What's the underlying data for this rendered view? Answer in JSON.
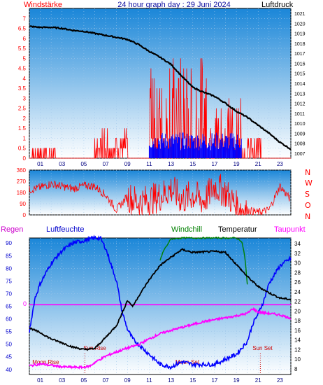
{
  "header": {
    "left_title": "Windstärke",
    "center_title": "24 hour graph day : 29 Juni 2024",
    "right_title": "Luftdruck"
  },
  "middle_panel": {
    "dir_labels": [
      "N",
      "W",
      "S",
      "O",
      "N"
    ]
  },
  "bottom_panel": {
    "legend": [
      "Regen",
      "Luftfeuchte",
      "Windchill",
      "Temperatur",
      "Taupunkt"
    ],
    "rain_zero_label": "0",
    "annotations": {
      "sun_rise": "Sun Rise",
      "sun_set": "Sun Set",
      "moon_rise": "Moon Rise",
      "moon_set": "Moon Set"
    }
  },
  "colors": {
    "wind": "#ff0000",
    "gust": "#0000ff",
    "pressure": "#000000",
    "humidity": "#0000ff",
    "windchill": "#008000",
    "temperature": "#000000",
    "dewpoint": "#ff00ff",
    "rain": "#ff00ff",
    "axis_left": "#ff0000",
    "axis_mid_left": "#ff0000",
    "hour_label": "#000080"
  },
  "chart_data": [
    {
      "type": "line",
      "id": "wind-pressure",
      "xlabel_ticks": [
        "01",
        "03",
        "05",
        "07",
        "09",
        "11",
        "13",
        "15",
        "17",
        "19",
        "21",
        "23"
      ],
      "x_range": [
        0,
        24
      ],
      "y_left_ticks": [
        0,
        0.5,
        1,
        1.5,
        2,
        2.5,
        3,
        3.5,
        4,
        4.5,
        5,
        5.5,
        6,
        6.5,
        7
      ],
      "y_left_range": [
        0,
        7.5
      ],
      "y_right_ticks": [
        1007,
        1008,
        1009,
        1010,
        1011,
        1012,
        1013,
        1014,
        1015,
        1016,
        1017,
        1018,
        1019,
        1020,
        1021
      ],
      "y_right_range": [
        1006.5,
        1021.5
      ],
      "pressure": {
        "x": [
          0,
          1,
          2,
          3,
          4,
          5,
          6,
          7,
          8,
          9,
          10,
          11,
          12,
          13,
          14,
          15,
          16,
          17,
          18,
          19,
          20,
          21,
          22,
          23,
          24
        ],
        "y": [
          1019.7,
          1019.6,
          1019.6,
          1019.5,
          1019.3,
          1019.2,
          1019.0,
          1018.8,
          1018.6,
          1018.4,
          1017.9,
          1017.2,
          1016.6,
          1015.9,
          1014.7,
          1013.6,
          1013.1,
          1012.7,
          1012.0,
          1011.2,
          1010.6,
          1009.8,
          1009.0,
          1008.1,
          1007.4
        ]
      },
      "wind_segments": [
        [
          0,
          2.4,
          0.5
        ],
        [
          6,
          9,
          1.0
        ],
        [
          11,
          17,
          3.5
        ],
        [
          17,
          19.5,
          2.2
        ],
        [
          19.5,
          21.5,
          0.8
        ]
      ],
      "gust_segments": [
        [
          11,
          19.5,
          1.0
        ]
      ]
    },
    {
      "type": "line",
      "id": "wind-direction",
      "y_left_ticks": [
        0,
        90,
        180,
        270,
        360
      ],
      "y_range": [
        0,
        360
      ],
      "x_range": [
        0,
        24
      ],
      "direction": {
        "x": [
          0,
          1,
          2,
          3,
          4,
          5,
          6,
          7,
          8,
          9,
          10,
          11,
          12,
          13,
          14,
          15,
          16,
          17,
          18,
          19,
          20,
          21,
          22,
          23,
          24
        ],
        "y": [
          200,
          220,
          250,
          230,
          210,
          235,
          230,
          160,
          40,
          150,
          100,
          120,
          150,
          210,
          120,
          160,
          110,
          230,
          180,
          70,
          40,
          20,
          40,
          230,
          120
        ]
      }
    },
    {
      "type": "line",
      "id": "humidity-temperature",
      "xlabel_ticks": [
        "01",
        "03",
        "05",
        "07",
        "09",
        "11",
        "13",
        "15",
        "17",
        "19",
        "21",
        "23"
      ],
      "x_range": [
        0,
        24
      ],
      "y_left_ticks": [
        40,
        45,
        50,
        55,
        60,
        65,
        70,
        75,
        80,
        85,
        90
      ],
      "y_left_range": [
        38,
        92
      ],
      "y_right_ticks": [
        8,
        10,
        12,
        14,
        16,
        18,
        20,
        22,
        24,
        26,
        28,
        30,
        32,
        34
      ],
      "y_right_range": [
        6.8,
        35.2
      ],
      "humidity": {
        "x": [
          0,
          0.5,
          1,
          2,
          3,
          4,
          5,
          6,
          6.5,
          7,
          8,
          8.5,
          9,
          9.5,
          10,
          11,
          12,
          13,
          14,
          15,
          16,
          17,
          18,
          19,
          20,
          20.5,
          21,
          21.5,
          22,
          23,
          24
        ],
        "y": [
          55,
          68,
          74,
          82,
          87,
          90,
          91,
          92,
          92,
          88,
          75,
          63,
          56,
          52,
          50,
          46,
          42,
          41,
          43,
          42,
          42,
          42,
          44,
          46,
          51,
          58,
          62,
          67,
          74,
          81,
          84
        ]
      },
      "temperature": {
        "x": [
          0,
          1,
          2,
          3,
          4,
          5,
          6,
          7,
          8,
          8.5,
          9,
          9.5,
          10,
          11,
          12,
          13,
          14,
          15,
          16,
          17,
          18,
          19,
          20,
          21,
          22,
          23,
          24
        ],
        "y": [
          16.5,
          15.5,
          14.2,
          13.4,
          12.5,
          12.0,
          12.2,
          14.5,
          17.0,
          19.5,
          22.2,
          21.0,
          23.0,
          26.5,
          29.5,
          31.2,
          32.8,
          32.2,
          32.3,
          32.4,
          32.2,
          29.7,
          27.2,
          25.1,
          23.8,
          22.7,
          22.4
        ]
      },
      "windchill": {
        "x": [
          12,
          12.3,
          13,
          14,
          15,
          16,
          17,
          18,
          19,
          19.5,
          19.8,
          20
        ],
        "y": [
          30.5,
          32.5,
          35.0,
          35.2,
          35.2,
          35.2,
          35.2,
          35.2,
          35.2,
          34.5,
          31.0,
          25.5
        ]
      },
      "dewpoint": {
        "x": [
          0,
          1,
          2,
          3,
          4,
          5,
          5.6,
          6,
          7,
          8,
          9,
          10,
          11,
          12,
          13,
          14,
          15,
          16,
          17,
          18,
          19,
          20,
          20.5,
          21,
          22,
          23,
          24
        ],
        "y": [
          8.6,
          9.0,
          8.7,
          8.4,
          8.3,
          8.3,
          8.6,
          9.3,
          10.6,
          11.5,
          12.3,
          13.0,
          14.2,
          15.3,
          16.0,
          16.6,
          17.2,
          17.8,
          18.2,
          18.6,
          19.0,
          19.5,
          20.5,
          19.8,
          19.5,
          19.2,
          18.5
        ]
      },
      "rain_zero_y": 65.6
    }
  ]
}
